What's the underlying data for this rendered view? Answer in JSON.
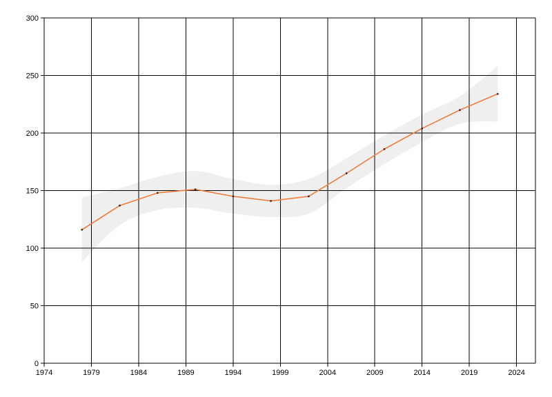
{
  "chart_data": {
    "type": "line",
    "title": "",
    "xlabel": "",
    "ylabel": "",
    "xlim": [
      1974,
      2026
    ],
    "ylim": [
      0,
      300
    ],
    "grid": true,
    "x_ticks": [
      1974,
      1979,
      1984,
      1989,
      1994,
      1999,
      2004,
      2009,
      2014,
      2019,
      2024
    ],
    "y_ticks": [
      0,
      50,
      100,
      150,
      200,
      250,
      300
    ],
    "series": [
      {
        "values": [
          {
            "x": 1978,
            "y": 116
          },
          {
            "x": 1982,
            "y": 137
          },
          {
            "x": 1986,
            "y": 148
          },
          {
            "x": 1990,
            "y": 151
          },
          {
            "x": 1994,
            "y": 145
          },
          {
            "x": 1998,
            "y": 141
          },
          {
            "x": 2002,
            "y": 145
          },
          {
            "x": 2006,
            "y": 165
          },
          {
            "x": 2010,
            "y": 186
          },
          {
            "x": 2014,
            "y": 204
          },
          {
            "x": 2018,
            "y": 220
          },
          {
            "x": 2022,
            "y": 234
          }
        ],
        "color": "#f07c3c"
      }
    ],
    "confidence_band": {
      "color": "#efefef",
      "upper": [
        {
          "x": 1978,
          "y": 144
        },
        {
          "x": 1982,
          "y": 152
        },
        {
          "x": 1986,
          "y": 162
        },
        {
          "x": 1990,
          "y": 167
        },
        {
          "x": 1994,
          "y": 160
        },
        {
          "x": 1998,
          "y": 155
        },
        {
          "x": 2002,
          "y": 160
        },
        {
          "x": 2006,
          "y": 178
        },
        {
          "x": 2010,
          "y": 198
        },
        {
          "x": 2014,
          "y": 216
        },
        {
          "x": 2018,
          "y": 232
        },
        {
          "x": 2022,
          "y": 258
        }
      ],
      "lower": [
        {
          "x": 1978,
          "y": 88
        },
        {
          "x": 1982,
          "y": 120
        },
        {
          "x": 1986,
          "y": 133
        },
        {
          "x": 1990,
          "y": 135
        },
        {
          "x": 1994,
          "y": 130
        },
        {
          "x": 1998,
          "y": 127
        },
        {
          "x": 2002,
          "y": 130
        },
        {
          "x": 2006,
          "y": 152
        },
        {
          "x": 2010,
          "y": 173
        },
        {
          "x": 2014,
          "y": 192
        },
        {
          "x": 2018,
          "y": 208
        },
        {
          "x": 2022,
          "y": 210
        }
      ]
    }
  }
}
